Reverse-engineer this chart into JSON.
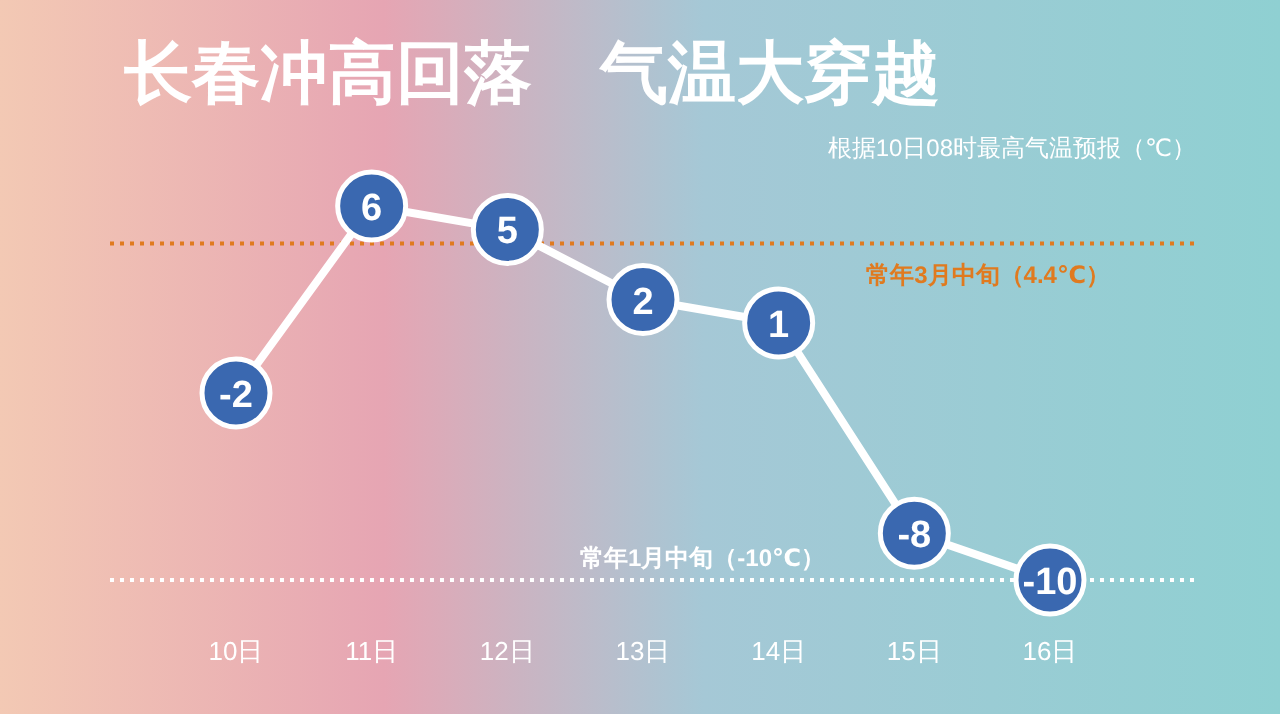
{
  "chart_data": {
    "type": "line",
    "title": "长春冲高回落　气温大穿越",
    "subtitle": "根据10日08时最高气温预报（℃）",
    "categories": [
      "10日",
      "11日",
      "12日",
      "13日",
      "14日",
      "15日",
      "16日"
    ],
    "series": [
      {
        "color": "#3a68b0",
        "values": [
          -2,
          6,
          5,
          2,
          1,
          -8,
          -10
        ]
      }
    ],
    "data_labels": true,
    "marker": "circle",
    "line_style": "solid",
    "ref_lines": [
      {
        "axis": "y",
        "value": 4.4,
        "label": "常年3月中旬（4.4℃）",
        "color": "#e07a1f",
        "line_style": "dotted"
      },
      {
        "axis": "y",
        "value": -10,
        "label": "常年1月中旬（-10℃）",
        "color": "#ffffff",
        "line_style": "dotted"
      }
    ]
  }
}
